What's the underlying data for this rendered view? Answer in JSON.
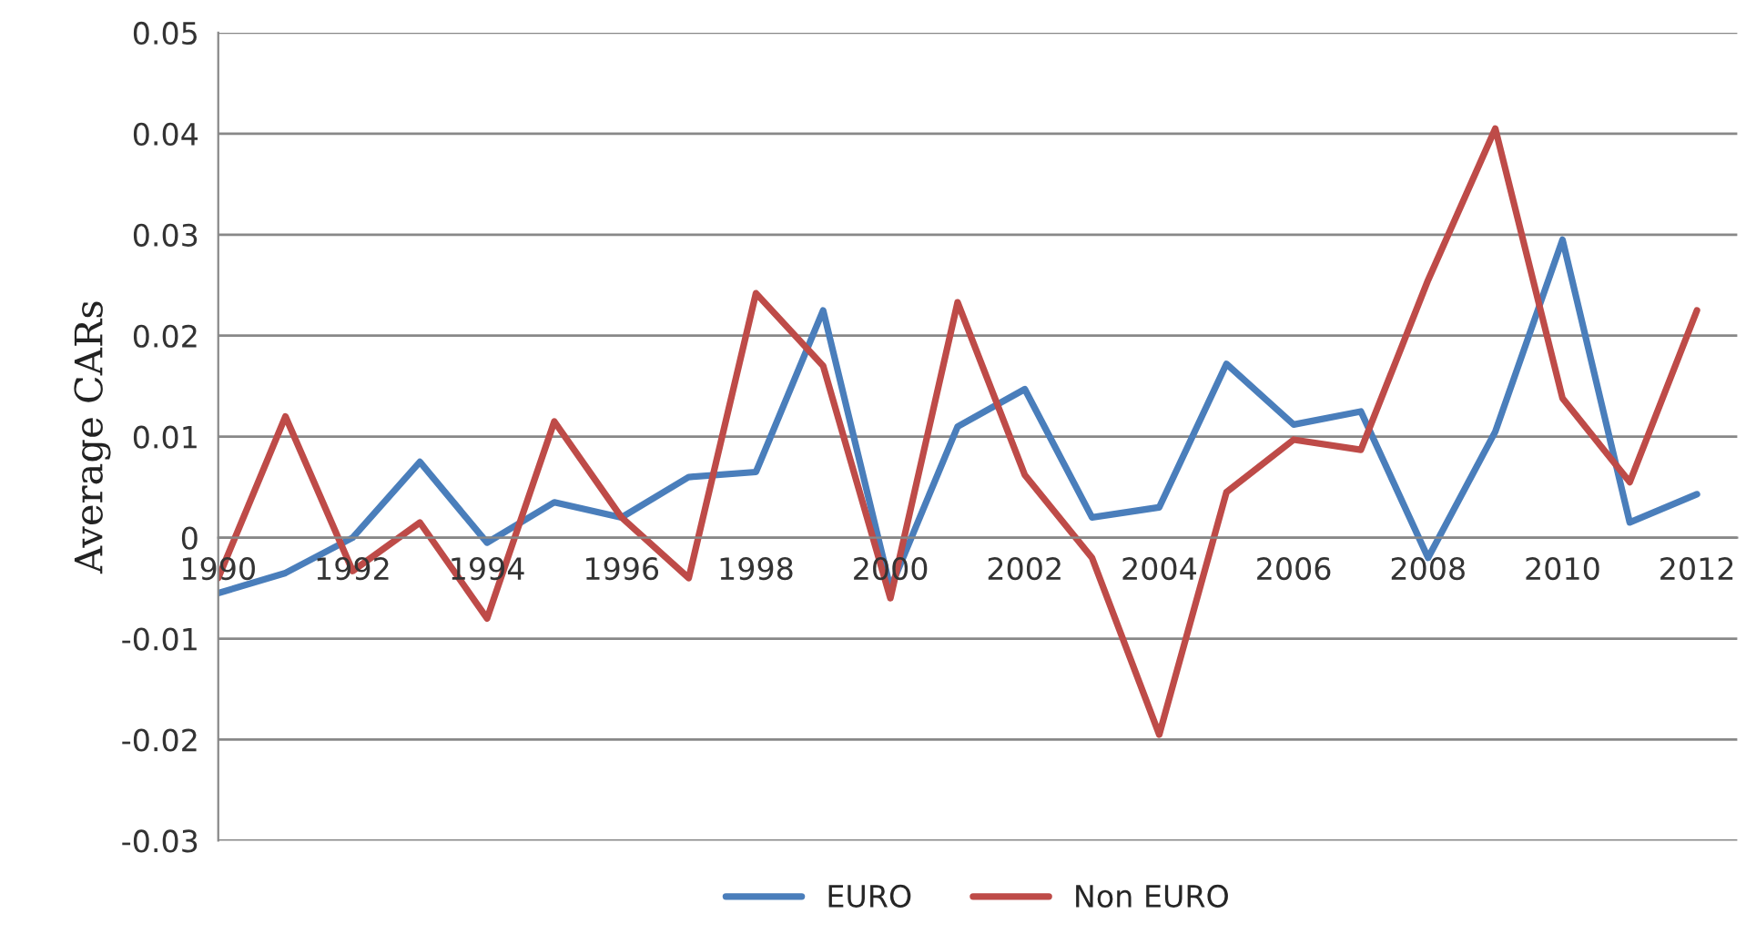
{
  "chart_data": {
    "type": "line",
    "ylabel": "Average CARs",
    "x": [
      1990,
      1991,
      1992,
      1993,
      1994,
      1995,
      1996,
      1997,
      1998,
      1999,
      2000,
      2001,
      2002,
      2003,
      2004,
      2005,
      2006,
      2007,
      2008,
      2009,
      2010,
      2011,
      2012
    ],
    "series": [
      {
        "name": "EURO",
        "color": "#4a7ebb",
        "values": [
          -0.0055,
          -0.0035,
          0.0,
          0.0075,
          -0.0005,
          0.0035,
          0.002,
          0.006,
          0.0065,
          0.0225,
          -0.005,
          0.011,
          0.0147,
          0.002,
          0.003,
          0.0172,
          0.0112,
          0.0125,
          -0.002,
          0.0105,
          0.0295,
          0.0015,
          0.0043
        ]
      },
      {
        "name": "Non EURO",
        "color": "#be4b48",
        "values": [
          -0.004,
          0.012,
          -0.0033,
          0.0015,
          -0.008,
          0.0115,
          0.002,
          -0.004,
          0.0242,
          0.017,
          -0.006,
          0.0233,
          0.0062,
          -0.002,
          -0.0195,
          0.0045,
          0.0097,
          0.0087,
          0.0255,
          0.0405,
          0.0138,
          0.0055,
          0.0225
        ]
      }
    ],
    "xlim": [
      1990,
      2012.6
    ],
    "xticks": [
      1990,
      1992,
      1994,
      1996,
      1998,
      2000,
      2002,
      2004,
      2006,
      2008,
      2010,
      2012
    ],
    "ylim": [
      -0.03,
      0.05
    ],
    "yticks": [
      {
        "value": -0.03,
        "label": "-0.03"
      },
      {
        "value": -0.02,
        "label": "-0.02"
      },
      {
        "value": -0.01,
        "label": "-0.01"
      },
      0,
      0.01,
      0.02,
      0.03,
      0.04,
      0.05
    ],
    "grid": "y",
    "legend": "bottom",
    "marker": "none",
    "line_style": "solid"
  }
}
